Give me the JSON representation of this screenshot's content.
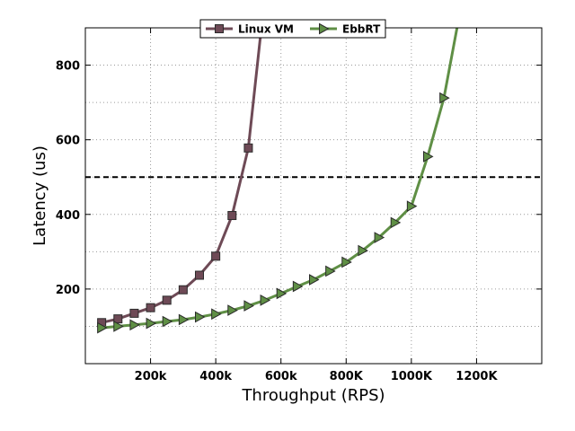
{
  "chart_data": {
    "type": "line",
    "title": "",
    "xlabel": "Throughput (RPS)",
    "ylabel": "Latency (us)",
    "xlim": [
      0,
      1400000
    ],
    "ylim": [
      0,
      900
    ],
    "x_ticks": [
      {
        "value": 200000,
        "label": "200k"
      },
      {
        "value": 400000,
        "label": "400k"
      },
      {
        "value": 600000,
        "label": "600k"
      },
      {
        "value": 800000,
        "label": "800K"
      },
      {
        "value": 1000000,
        "label": "1000K"
      },
      {
        "value": 1200000,
        "label": "1200K"
      }
    ],
    "y_ticks": [
      {
        "value": 200,
        "label": "200"
      },
      {
        "value": 400,
        "label": "400"
      },
      {
        "value": 600,
        "label": "600"
      },
      {
        "value": 800,
        "label": "800"
      }
    ],
    "grid": true,
    "legend_position": "top-center",
    "reference_line": {
      "y": 500,
      "style": "dashed",
      "color": "#000000"
    },
    "series": [
      {
        "name": "Linux VM",
        "color": "#6e4a56",
        "marker": "square",
        "points": [
          [
            50000,
            110
          ],
          [
            100000,
            120
          ],
          [
            150000,
            135
          ],
          [
            200000,
            150
          ],
          [
            250000,
            170
          ],
          [
            300000,
            198
          ],
          [
            350000,
            237
          ],
          [
            400000,
            288
          ],
          [
            450000,
            397
          ],
          [
            500000,
            578
          ],
          [
            540000,
            900
          ]
        ],
        "marker_count": 10
      },
      {
        "name": "EbbRT",
        "color": "#5f8f45",
        "marker": "triangle-right",
        "points": [
          [
            50000,
            96
          ],
          [
            100000,
            100
          ],
          [
            150000,
            104
          ],
          [
            200000,
            108
          ],
          [
            250000,
            113
          ],
          [
            300000,
            118
          ],
          [
            350000,
            125
          ],
          [
            400000,
            133
          ],
          [
            450000,
            143
          ],
          [
            500000,
            155
          ],
          [
            550000,
            170
          ],
          [
            600000,
            188
          ],
          [
            650000,
            207
          ],
          [
            700000,
            225
          ],
          [
            750000,
            248
          ],
          [
            800000,
            272
          ],
          [
            850000,
            303
          ],
          [
            900000,
            338
          ],
          [
            950000,
            378
          ],
          [
            1000000,
            422
          ],
          [
            1050000,
            555
          ],
          [
            1100000,
            712
          ],
          [
            1140000,
            900
          ]
        ],
        "marker_count": 22
      }
    ]
  }
}
